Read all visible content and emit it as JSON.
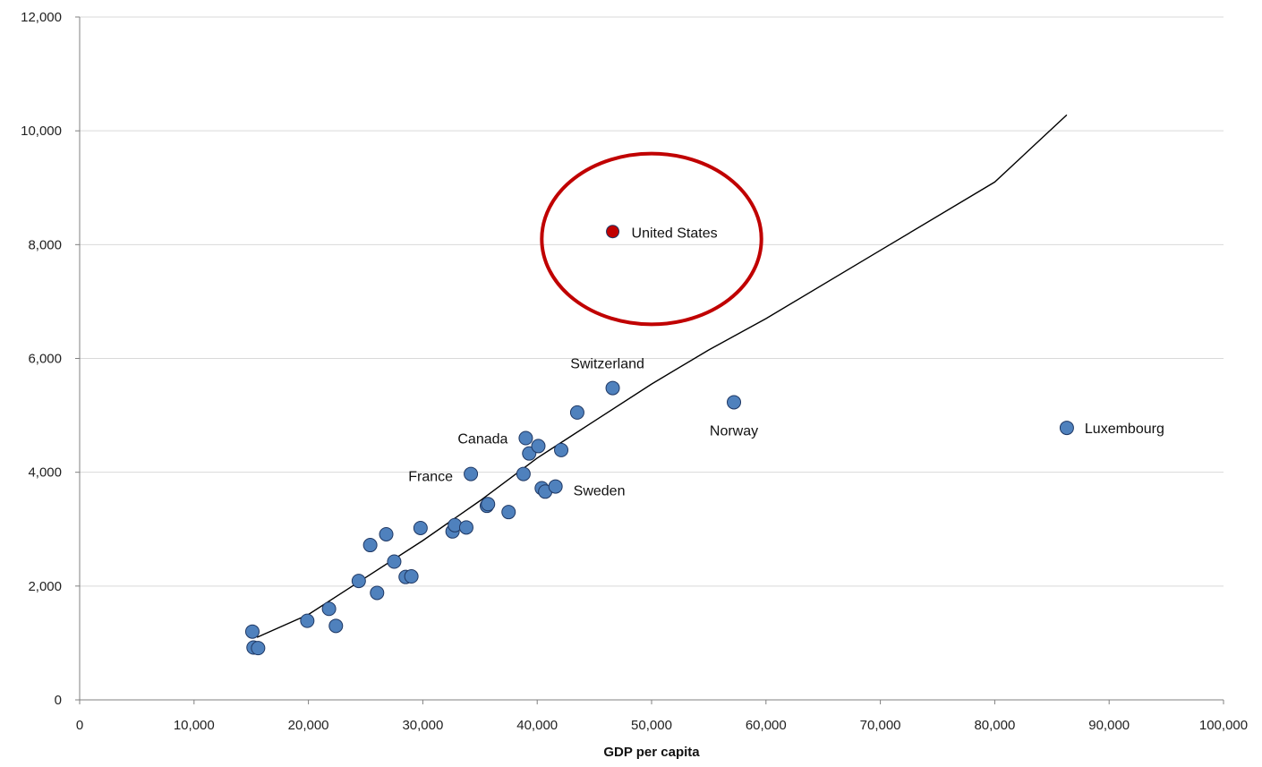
{
  "chart_data": {
    "type": "scatter",
    "title": "",
    "xlabel": "GDP per capita",
    "ylabel": "",
    "xlim": [
      0,
      100000
    ],
    "ylim": [
      0,
      12000
    ],
    "grid": {
      "horizontal": true,
      "vertical": false
    },
    "x_ticks": [
      "0",
      "10,000",
      "20,000",
      "30,000",
      "40,000",
      "50,000",
      "60,000",
      "70,000",
      "80,000",
      "90,000",
      "100,000"
    ],
    "x_tick_values": [
      0,
      10000,
      20000,
      30000,
      40000,
      50000,
      60000,
      70000,
      80000,
      90000,
      100000
    ],
    "y_ticks": [
      "0",
      "2,000",
      "4,000",
      "6,000",
      "8,000",
      "10,000",
      "12,000"
    ],
    "y_tick_values": [
      0,
      2000,
      4000,
      6000,
      8000,
      10000,
      12000
    ],
    "colors": {
      "point": "#4f81bd",
      "point_stroke": "#1f3864",
      "highlight": "#c00000",
      "trend": "#000000",
      "grid": "#d9d9d9",
      "axis": "#808080"
    },
    "points": [
      {
        "x": 15100,
        "y": 1200
      },
      {
        "x": 15200,
        "y": 920
      },
      {
        "x": 15600,
        "y": 910
      },
      {
        "x": 19900,
        "y": 1390
      },
      {
        "x": 21800,
        "y": 1600
      },
      {
        "x": 22400,
        "y": 1300
      },
      {
        "x": 24400,
        "y": 2090
      },
      {
        "x": 25400,
        "y": 2720
      },
      {
        "x": 26000,
        "y": 1880
      },
      {
        "x": 26800,
        "y": 2910
      },
      {
        "x": 27500,
        "y": 2430
      },
      {
        "x": 28500,
        "y": 2160
      },
      {
        "x": 29000,
        "y": 2170
      },
      {
        "x": 29800,
        "y": 3020
      },
      {
        "x": 32600,
        "y": 2960
      },
      {
        "x": 32800,
        "y": 3070
      },
      {
        "x": 33800,
        "y": 3030
      },
      {
        "x": 34200,
        "y": 3970
      },
      {
        "x": 35600,
        "y": 3410
      },
      {
        "x": 35700,
        "y": 3440
      },
      {
        "x": 37500,
        "y": 3300
      },
      {
        "x": 38800,
        "y": 3970
      },
      {
        "x": 39000,
        "y": 4600
      },
      {
        "x": 39300,
        "y": 4330
      },
      {
        "x": 40100,
        "y": 4460
      },
      {
        "x": 40400,
        "y": 3720
      },
      {
        "x": 40700,
        "y": 3660
      },
      {
        "x": 41600,
        "y": 3750
      },
      {
        "x": 42100,
        "y": 4390
      },
      {
        "x": 43500,
        "y": 5050
      },
      {
        "x": 46600,
        "y": 5480
      },
      {
        "x": 57200,
        "y": 5230
      },
      {
        "x": 86300,
        "y": 4780
      }
    ],
    "highlight_point": {
      "x": 46600,
      "y": 8230,
      "label": "United States"
    },
    "annotations": [
      {
        "label": "Switzerland",
        "x": 46600,
        "y": 5480
      },
      {
        "label": "Canada",
        "x": 39000,
        "y": 4600
      },
      {
        "label": "France",
        "x": 34200,
        "y": 3970
      },
      {
        "label": "Sweden",
        "x": 41600,
        "y": 3750
      },
      {
        "label": "Norway",
        "x": 57200,
        "y": 5230
      },
      {
        "label": "Luxembourg",
        "x": 86300,
        "y": 4780
      }
    ],
    "trend_line": [
      {
        "x": 15500,
        "y": 1100
      },
      {
        "x": 20000,
        "y": 1500
      },
      {
        "x": 25000,
        "y": 2150
      },
      {
        "x": 30000,
        "y": 2800
      },
      {
        "x": 35000,
        "y": 3500
      },
      {
        "x": 40000,
        "y": 4250
      },
      {
        "x": 45000,
        "y": 4900
      },
      {
        "x": 50000,
        "y": 5550
      },
      {
        "x": 55000,
        "y": 6150
      },
      {
        "x": 60000,
        "y": 6700
      },
      {
        "x": 70000,
        "y": 7900
      },
      {
        "x": 80000,
        "y": 9100
      },
      {
        "x": 86300,
        "y": 10280
      }
    ],
    "highlight_circle": {
      "cx": 50000,
      "cy": 8100,
      "rx": 9600,
      "ry": 1500
    }
  }
}
